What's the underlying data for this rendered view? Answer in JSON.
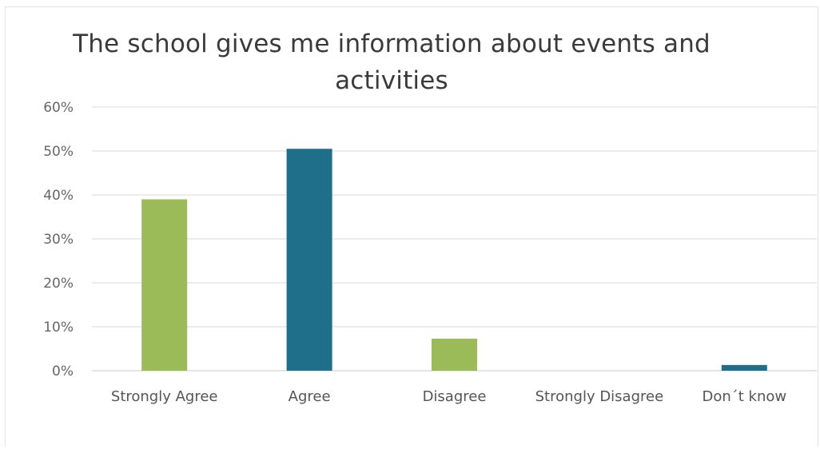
{
  "chart_data": {
    "type": "bar",
    "title": "The school gives me information about events and activities",
    "xlabel": "",
    "ylabel": "",
    "categories": [
      "Strongly Agree",
      "Agree",
      "Disagree",
      "Strongly Disagree",
      "Don´t know"
    ],
    "values": [
      39,
      50.5,
      7.3,
      0,
      1.3
    ],
    "value_unit": "%",
    "ylim": [
      0,
      60
    ],
    "yticks": [
      "0%",
      "10%",
      "20%",
      "30%",
      "40%",
      "50%",
      "60%"
    ],
    "grid": true,
    "legend": "none",
    "colors": [
      "#9bbb59",
      "#1f6f8b",
      "#9bbb59",
      "#1f6f8b",
      "#1f6f8b"
    ]
  }
}
